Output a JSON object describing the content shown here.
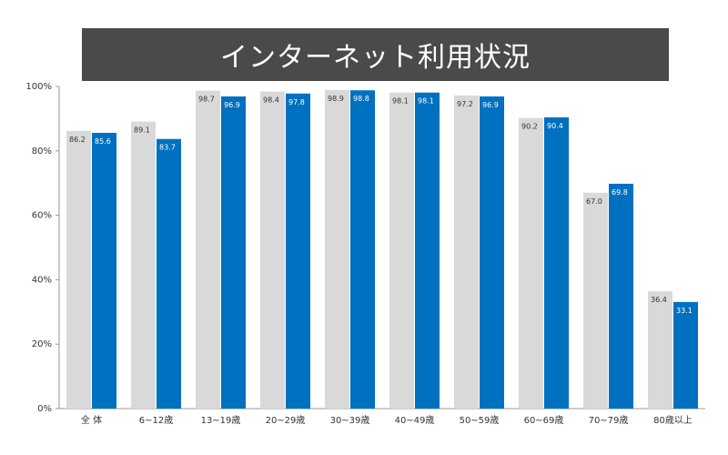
{
  "title": "インターネット利用状況",
  "chart_data": {
    "type": "bar",
    "title": "インターネット利用状況",
    "xlabel": "",
    "ylabel": "",
    "ylim": [
      0,
      100
    ],
    "yticks": [
      "0%",
      "20%",
      "40%",
      "60%",
      "80%",
      "100%"
    ],
    "categories": [
      "全 体",
      "6~12歳",
      "13~19歳",
      "20~29歳",
      "30~39歳",
      "40~49歳",
      "50~59歳",
      "60~69歳",
      "70~79歳",
      "80歳以上"
    ],
    "series": [
      {
        "color": "#d9d9d9",
        "values": [
          86.2,
          89.1,
          98.7,
          98.4,
          98.9,
          98.1,
          97.2,
          90.2,
          67.0,
          36.4
        ]
      },
      {
        "color": "#0070c0",
        "values": [
          85.6,
          83.7,
          96.9,
          97.8,
          98.8,
          98.1,
          96.9,
          90.4,
          69.8,
          33.1
        ]
      }
    ],
    "grid": false,
    "legend": "bottom"
  }
}
